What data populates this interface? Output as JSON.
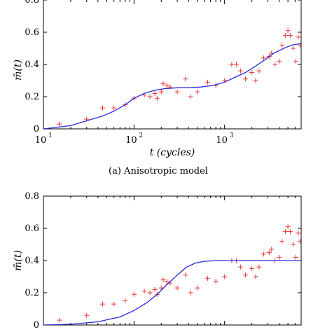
{
  "chart_data": [
    {
      "type": "scatter",
      "caption": "(a) Anisotropic model",
      "xlabel": "t (cycles)",
      "ylabel": "m̄(t)",
      "xscale": "log",
      "xlim": [
        10,
        7000
      ],
      "ylim": [
        0,
        0.8
      ],
      "x_tick_labels": [
        "10",
        "10",
        "10"
      ],
      "x_tick_exponents": [
        "1",
        "2",
        "3"
      ],
      "y_tick_labels": [
        "0",
        "0.2",
        "0.4",
        "0.6",
        "0.8"
      ],
      "series": [
        {
          "kind": "markers",
          "marker": "+",
          "color": "#e83a3a",
          "points": [
            [
              15,
              0.03
            ],
            [
              30,
              0.06
            ],
            [
              45,
              0.13
            ],
            [
              60,
              0.13
            ],
            [
              80,
              0.15
            ],
            [
              100,
              0.19
            ],
            [
              130,
              0.21
            ],
            [
              150,
              0.2
            ],
            [
              170,
              0.22
            ],
            [
              180,
              0.19
            ],
            [
              200,
              0.23
            ],
            [
              210,
              0.28
            ],
            [
              230,
              0.27
            ],
            [
              250,
              0.26
            ],
            [
              300,
              0.23
            ],
            [
              370,
              0.31
            ],
            [
              420,
              0.2
            ],
            [
              500,
              0.23
            ],
            [
              650,
              0.29
            ],
            [
              800,
              0.27
            ],
            [
              1000,
              0.3
            ],
            [
              1200,
              0.4
            ],
            [
              1350,
              0.4
            ],
            [
              1500,
              0.36
            ],
            [
              1700,
              0.31
            ],
            [
              2000,
              0.35
            ],
            [
              2200,
              0.3
            ],
            [
              2400,
              0.36
            ],
            [
              2700,
              0.44
            ],
            [
              3100,
              0.45
            ],
            [
              3300,
              0.47
            ],
            [
              3600,
              0.4
            ],
            [
              4000,
              0.42
            ],
            [
              4300,
              0.52
            ],
            [
              4700,
              0.58
            ],
            [
              5000,
              0.61
            ],
            [
              5300,
              0.58
            ],
            [
              5700,
              0.5
            ],
            [
              6100,
              0.42
            ],
            [
              6500,
              0.57
            ],
            [
              6800,
              0.52
            ]
          ]
        },
        {
          "kind": "line",
          "color": "#2a2ad8",
          "points": [
            [
              10,
              0.0
            ],
            [
              20,
              0.02
            ],
            [
              30,
              0.05
            ],
            [
              45,
              0.08
            ],
            [
              60,
              0.11
            ],
            [
              80,
              0.15
            ],
            [
              100,
              0.19
            ],
            [
              130,
              0.22
            ],
            [
              170,
              0.24
            ],
            [
              220,
              0.25
            ],
            [
              300,
              0.255
            ],
            [
              400,
              0.255
            ],
            [
              550,
              0.26
            ],
            [
              750,
              0.27
            ],
            [
              1000,
              0.29
            ],
            [
              1300,
              0.32
            ],
            [
              1700,
              0.35
            ],
            [
              2200,
              0.39
            ],
            [
              2800,
              0.43
            ],
            [
              3500,
              0.47
            ],
            [
              4500,
              0.5
            ],
            [
              5500,
              0.52
            ],
            [
              7000,
              0.53
            ]
          ]
        }
      ]
    },
    {
      "type": "scatter",
      "caption": "",
      "xlabel": "",
      "ylabel": "m̄(t)",
      "xscale": "log",
      "xlim": [
        10,
        7000
      ],
      "ylim": [
        0,
        0.8
      ],
      "y_tick_labels": [
        "0",
        "0.2",
        "0.4",
        "0.6",
        "0.8"
      ],
      "series": [
        {
          "kind": "markers",
          "marker": "+",
          "color": "#e83a3a",
          "points": [
            [
              15,
              0.03
            ],
            [
              30,
              0.06
            ],
            [
              45,
              0.13
            ],
            [
              60,
              0.13
            ],
            [
              80,
              0.15
            ],
            [
              100,
              0.19
            ],
            [
              130,
              0.21
            ],
            [
              150,
              0.2
            ],
            [
              170,
              0.22
            ],
            [
              180,
              0.19
            ],
            [
              200,
              0.23
            ],
            [
              210,
              0.28
            ],
            [
              230,
              0.27
            ],
            [
              250,
              0.26
            ],
            [
              300,
              0.23
            ],
            [
              370,
              0.31
            ],
            [
              420,
              0.2
            ],
            [
              500,
              0.23
            ],
            [
              650,
              0.29
            ],
            [
              800,
              0.27
            ],
            [
              1000,
              0.3
            ],
            [
              1200,
              0.4
            ],
            [
              1350,
              0.4
            ],
            [
              1500,
              0.36
            ],
            [
              1700,
              0.31
            ],
            [
              2000,
              0.35
            ],
            [
              2200,
              0.3
            ],
            [
              2400,
              0.36
            ],
            [
              2700,
              0.44
            ],
            [
              3100,
              0.45
            ],
            [
              3300,
              0.47
            ],
            [
              3600,
              0.4
            ],
            [
              4000,
              0.42
            ],
            [
              4300,
              0.52
            ],
            [
              4700,
              0.58
            ],
            [
              5000,
              0.61
            ],
            [
              5300,
              0.58
            ],
            [
              5700,
              0.5
            ],
            [
              6100,
              0.42
            ],
            [
              6500,
              0.57
            ],
            [
              6800,
              0.52
            ]
          ]
        },
        {
          "kind": "line",
          "color": "#2a2ad8",
          "points": [
            [
              10,
              0.0
            ],
            [
              20,
              0.005
            ],
            [
              40,
              0.02
            ],
            [
              70,
              0.05
            ],
            [
              100,
              0.09
            ],
            [
              140,
              0.14
            ],
            [
              180,
              0.19
            ],
            [
              230,
              0.25
            ],
            [
              300,
              0.31
            ],
            [
              380,
              0.36
            ],
            [
              480,
              0.385
            ],
            [
              600,
              0.395
            ],
            [
              800,
              0.4
            ],
            [
              1200,
              0.4
            ],
            [
              3000,
              0.4
            ],
            [
              7000,
              0.4
            ]
          ]
        }
      ]
    }
  ]
}
